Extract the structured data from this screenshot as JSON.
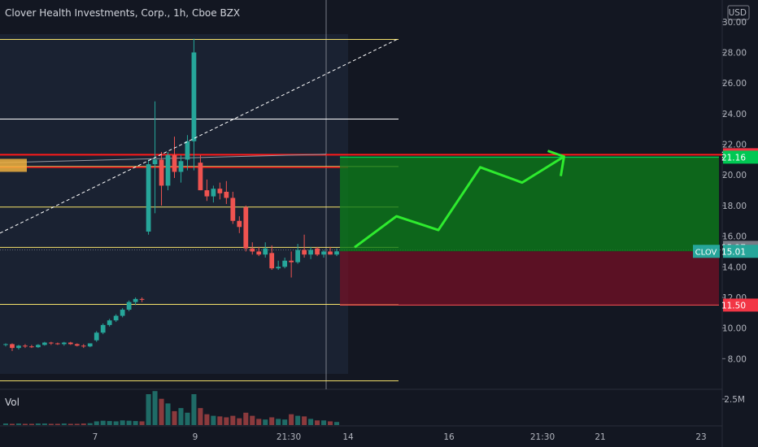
{
  "header": {
    "title": "Clover Health Investments, Corp., 1h, Cboe BZX",
    "currency": "USD",
    "volume_label": "Vol"
  },
  "chart_data": {
    "type": "candlestick",
    "symbol": "CLOV",
    "ylim": [
      6.0,
      31.0
    ],
    "y_ticks": [
      "30.00",
      "28.00",
      "26.00",
      "24.00",
      "22.00",
      "20.00",
      "18.00",
      "16.00",
      "14.00",
      "12.00",
      "10.00",
      "8.00"
    ],
    "y_tick_values": [
      30,
      28,
      26,
      24,
      22,
      20,
      18,
      16,
      14,
      12,
      10,
      8
    ],
    "x_tick_labels": [
      "7",
      "9",
      "21:30",
      "14",
      "16",
      "21:30",
      "21",
      "23"
    ],
    "price_labels": [
      {
        "text": "21.32",
        "value": 21.32,
        "color": "#f23645"
      },
      {
        "text": "21.16",
        "value": 21.16,
        "color": "#00c853"
      },
      {
        "text": "15.27",
        "value": 15.27,
        "color": "#787b86"
      },
      {
        "text": "15.01",
        "value": 15.01,
        "color": "#26a69a",
        "tag": "CLOV"
      },
      {
        "text": "11.50",
        "value": 11.5,
        "color": "#f23645"
      }
    ],
    "volume_tick": "2.5M",
    "horizontal_levels": {
      "yellow": [
        28.85,
        20.55,
        17.9,
        15.27,
        11.55,
        6.55
      ],
      "white": [
        23.65
      ],
      "red": [
        21.32,
        20.5
      ]
    },
    "position": {
      "entry": 15.01,
      "target": 21.16,
      "stop": 11.5
    },
    "candles": [
      [
        8.9,
        9.0,
        8.8,
        8.95
      ],
      [
        8.95,
        9.0,
        8.5,
        8.7
      ],
      [
        8.7,
        8.9,
        8.6,
        8.85
      ],
      [
        8.85,
        8.95,
        8.7,
        8.8
      ],
      [
        8.8,
        8.9,
        8.7,
        8.75
      ],
      [
        8.75,
        8.95,
        8.7,
        8.9
      ],
      [
        8.9,
        9.1,
        8.85,
        9.05
      ],
      [
        9.05,
        9.1,
        8.9,
        9.0
      ],
      [
        9.0,
        9.05,
        8.9,
        8.95
      ],
      [
        8.95,
        9.1,
        8.85,
        9.05
      ],
      [
        9.05,
        9.1,
        8.9,
        8.95
      ],
      [
        8.95,
        9.0,
        8.8,
        8.85
      ],
      [
        8.85,
        8.95,
        8.7,
        8.8
      ],
      [
        8.8,
        9.0,
        8.75,
        9.0
      ],
      [
        9.2,
        9.8,
        9.1,
        9.7
      ],
      [
        9.7,
        10.3,
        9.6,
        10.2
      ],
      [
        10.2,
        10.6,
        10.1,
        10.5
      ],
      [
        10.5,
        10.9,
        10.4,
        10.8
      ],
      [
        10.8,
        11.3,
        10.7,
        11.2
      ],
      [
        11.2,
        11.8,
        11.1,
        11.7
      ],
      [
        11.7,
        12.0,
        11.5,
        11.9
      ],
      [
        11.9,
        12.0,
        11.7,
        11.85
      ],
      [
        16.3,
        21.0,
        16.1,
        20.7
      ],
      [
        20.7,
        24.8,
        17.5,
        21.0
      ],
      [
        21.0,
        21.5,
        18.0,
        19.3
      ],
      [
        19.3,
        21.5,
        19.0,
        21.3
      ],
      [
        21.3,
        22.5,
        19.8,
        20.2
      ],
      [
        20.2,
        21.3,
        19.5,
        20.9
      ],
      [
        21.0,
        22.6,
        20.3,
        22.2
      ],
      [
        22.2,
        28.9,
        20.3,
        28.0
      ],
      [
        20.8,
        21.3,
        19.0,
        19.0
      ],
      [
        19.0,
        19.7,
        18.3,
        18.6
      ],
      [
        18.6,
        19.3,
        18.2,
        19.1
      ],
      [
        19.1,
        19.5,
        18.4,
        18.8
      ],
      [
        18.9,
        19.6,
        18.1,
        18.5
      ],
      [
        18.5,
        18.9,
        16.8,
        17.0
      ],
      [
        17.0,
        17.3,
        16.2,
        16.6
      ],
      [
        17.9,
        18.0,
        15.0,
        15.2
      ],
      [
        15.2,
        15.6,
        14.8,
        15.0
      ],
      [
        15.0,
        15.3,
        14.7,
        14.8
      ],
      [
        14.8,
        15.6,
        14.6,
        15.2
      ],
      [
        14.9,
        15.4,
        13.8,
        13.9
      ],
      [
        13.9,
        14.4,
        13.8,
        14.0
      ],
      [
        14.0,
        14.6,
        13.9,
        14.4
      ],
      [
        14.4,
        15.0,
        13.3,
        14.3
      ],
      [
        14.3,
        15.5,
        14.2,
        15.1
      ],
      [
        15.1,
        16.1,
        14.6,
        14.8
      ],
      [
        14.8,
        15.3,
        14.5,
        15.1
      ],
      [
        15.2,
        15.3,
        14.7,
        14.8
      ],
      [
        14.8,
        15.1,
        14.6,
        15.0
      ],
      [
        15.0,
        15.3,
        14.8,
        14.8
      ],
      [
        14.8,
        15.2,
        14.7,
        15.01
      ]
    ],
    "volumes": [
      0.05,
      0.04,
      0.05,
      0.04,
      0.04,
      0.05,
      0.05,
      0.04,
      0.04,
      0.05,
      0.04,
      0.04,
      0.05,
      0.06,
      0.12,
      0.14,
      0.13,
      0.12,
      0.15,
      0.14,
      0.13,
      0.12,
      1.0,
      1.1,
      0.85,
      0.7,
      0.45,
      0.55,
      0.4,
      1.0,
      0.55,
      0.35,
      0.3,
      0.28,
      0.25,
      0.3,
      0.22,
      0.4,
      0.3,
      0.2,
      0.18,
      0.25,
      0.2,
      0.18,
      0.35,
      0.3,
      0.28,
      0.2,
      0.15,
      0.15,
      0.12,
      0.1
    ],
    "projection": [
      [
        15.27,
        0
      ],
      [
        17.3,
        1
      ],
      [
        16.4,
        2
      ],
      [
        20.5,
        3
      ],
      [
        19.5,
        4
      ],
      [
        21.2,
        5
      ]
    ]
  }
}
